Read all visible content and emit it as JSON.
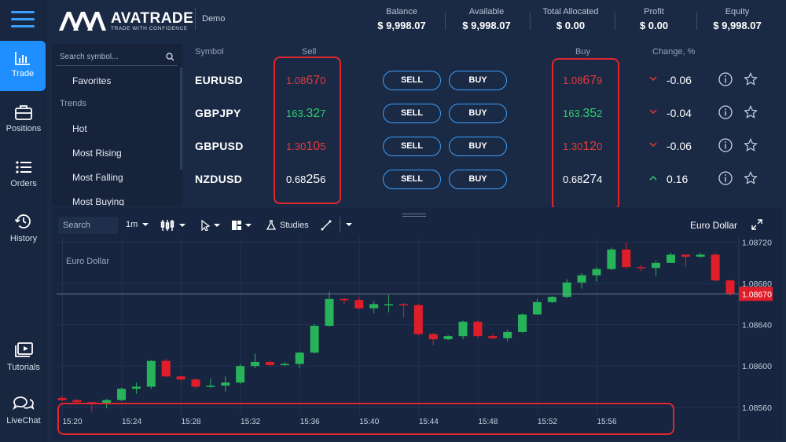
{
  "brand": {
    "name": "AVATRADE",
    "tagline": "TRADE WITH CONFIDENCE",
    "mode": "Demo"
  },
  "rail": {
    "items": [
      {
        "label": "Trade",
        "icon": "bar-chart-icon"
      },
      {
        "label": "Positions",
        "icon": "briefcase-icon"
      },
      {
        "label": "Orders",
        "icon": "list-icon"
      },
      {
        "label": "History",
        "icon": "history-icon"
      },
      {
        "label": "Tutorials",
        "icon": "video-library-icon"
      },
      {
        "label": "LiveChat",
        "icon": "chat-bubbles-icon"
      }
    ]
  },
  "account": {
    "balance_label": "Balance",
    "balance": "$ 9,998.07",
    "available_label": "Available",
    "available": "$ 9,998.07",
    "allocated_label": "Total Allocated",
    "allocated": "$ 0.00",
    "profit_label": "Profit",
    "profit": "$ 0.00",
    "equity_label": "Equity",
    "equity": "$ 9,998.07"
  },
  "sidebar": {
    "search_placeholder": "Search symbol...",
    "items": [
      {
        "label": "Favorites",
        "type": "item"
      },
      {
        "label": "Trends",
        "type": "heading"
      },
      {
        "label": "Hot",
        "type": "item"
      },
      {
        "label": "Most Rising",
        "type": "item"
      },
      {
        "label": "Most Falling",
        "type": "item"
      },
      {
        "label": "Most Buying",
        "type": "item"
      }
    ]
  },
  "table": {
    "headers": {
      "symbol": "Symbol",
      "sell": "Sell",
      "buy": "Buy",
      "change": "Change, %"
    },
    "sell_btn": "SELL",
    "buy_btn": "BUY",
    "rows": [
      {
        "symbol": "EURUSD",
        "sell_a": "1.08",
        "sell_b": "67",
        "sell_c": "0",
        "sell_dir": "neg",
        "buy_a": "1.08",
        "buy_b": "67",
        "buy_c": "9",
        "buy_dir": "neg",
        "change": "-0.06",
        "change_dir": "down"
      },
      {
        "symbol": "GBPJPY",
        "sell_a": "163.",
        "sell_b": "32",
        "sell_c": "7",
        "sell_dir": "pos",
        "buy_a": "163.",
        "buy_b": "35",
        "buy_c": "2",
        "buy_dir": "pos",
        "change": "-0.04",
        "change_dir": "down"
      },
      {
        "symbol": "GBPUSD",
        "sell_a": "1.30",
        "sell_b": "10",
        "sell_c": "5",
        "sell_dir": "neg",
        "buy_a": "1.30",
        "buy_b": "12",
        "buy_c": "0",
        "buy_dir": "neg",
        "change": "-0.06",
        "change_dir": "down"
      },
      {
        "symbol": "NZDUSD",
        "sell_a": "0.68",
        "sell_b": "25",
        "sell_c": "6",
        "sell_dir": "neu",
        "buy_a": "0.68",
        "buy_b": "27",
        "buy_c": "4",
        "buy_dir": "neu",
        "change": "0.16",
        "change_dir": "up"
      }
    ]
  },
  "chart_toolbar": {
    "search_placeholder": "Search",
    "timeframe": "1m",
    "studies_label": "Studies",
    "instrument_title": "Euro Dollar"
  },
  "chart_data": {
    "type": "candlestick",
    "title": "Euro Dollar",
    "ylim": [
      1.08553,
      1.08725
    ],
    "y_ticks": [
      "1.08720",
      "1.08680",
      "1.08640",
      "1.08600",
      "1.08560"
    ],
    "x_ticks": [
      "15:20",
      "15:24",
      "15:28",
      "15:32",
      "15:36",
      "15:40",
      "15:44",
      "15:48",
      "15:52",
      "15:56"
    ],
    "last_price": "1.08670",
    "colors": {
      "up": "#27b35a",
      "down": "#e01e2a"
    },
    "candles": [
      [
        1.08569,
        1.08567,
        1.08571,
        1.08566
      ],
      [
        1.08567,
        1.08565,
        1.08568,
        1.08563
      ],
      [
        1.08565,
        1.08563,
        1.08565,
        1.08555
      ],
      [
        1.08563,
        1.08567,
        1.08568,
        1.08559
      ],
      [
        1.08567,
        1.08578,
        1.08579,
        1.08566
      ],
      [
        1.08578,
        1.0858,
        1.08584,
        1.08573
      ],
      [
        1.0858,
        1.08605,
        1.08606,
        1.08578
      ],
      [
        1.08605,
        1.0859,
        1.08607,
        1.08589
      ],
      [
        1.0859,
        1.08587,
        1.08591,
        1.08586
      ],
      [
        1.08587,
        1.0858,
        1.08588,
        1.08578
      ],
      [
        1.0858,
        1.08581,
        1.08588,
        1.08579
      ],
      [
        1.08581,
        1.08584,
        1.0859,
        1.08575
      ],
      [
        1.08584,
        1.086,
        1.08602,
        1.08583
      ],
      [
        1.086,
        1.08604,
        1.08612,
        1.08598
      ],
      [
        1.08604,
        1.08601,
        1.08605,
        1.086
      ],
      [
        1.08601,
        1.08602,
        1.08604,
        1.086
      ],
      [
        1.08602,
        1.08613,
        1.08614,
        1.08598
      ],
      [
        1.08613,
        1.08639,
        1.08641,
        1.08612
      ],
      [
        1.08639,
        1.08665,
        1.08672,
        1.08638
      ],
      [
        1.08665,
        1.08664,
        1.08666,
        1.0866
      ],
      [
        1.08664,
        1.08656,
        1.08667,
        1.08655
      ],
      [
        1.08656,
        1.0866,
        1.08663,
        1.08651
      ],
      [
        1.0866,
        1.0866,
        1.08669,
        1.08652
      ],
      [
        1.0866,
        1.08659,
        1.08661,
        1.08647
      ],
      [
        1.08659,
        1.08631,
        1.0866,
        1.0863
      ],
      [
        1.08631,
        1.08626,
        1.08632,
        1.0862
      ],
      [
        1.08626,
        1.08629,
        1.0863,
        1.08625
      ],
      [
        1.08629,
        1.08643,
        1.08644,
        1.08626
      ],
      [
        1.08643,
        1.08629,
        1.08644,
        1.08627
      ],
      [
        1.08629,
        1.08627,
        1.08631,
        1.08626
      ],
      [
        1.08627,
        1.08633,
        1.08635,
        1.08624
      ],
      [
        1.08633,
        1.0865,
        1.08651,
        1.08632
      ],
      [
        1.0865,
        1.08662,
        1.08665,
        1.0865
      ],
      [
        1.08662,
        1.08667,
        1.08668,
        1.08661
      ],
      [
        1.08667,
        1.08681,
        1.08684,
        1.08666
      ],
      [
        1.08681,
        1.08688,
        1.0869,
        1.08675
      ],
      [
        1.08688,
        1.08694,
        1.08696,
        1.08682
      ],
      [
        1.08694,
        1.08713,
        1.08715,
        1.08693
      ],
      [
        1.08713,
        1.08696,
        1.0872,
        1.08694
      ],
      [
        1.08696,
        1.08695,
        1.08698,
        1.08692
      ],
      [
        1.08695,
        1.087,
        1.08702,
        1.08687
      ],
      [
        1.087,
        1.08708,
        1.0871,
        1.087
      ],
      [
        1.08708,
        1.08706,
        1.08708,
        1.08696
      ],
      [
        1.08706,
        1.08708,
        1.0871,
        1.08705
      ],
      [
        1.08708,
        1.08683,
        1.0871,
        1.08682
      ],
      [
        1.08683,
        1.0867,
        1.08684,
        1.08668
      ]
    ]
  }
}
